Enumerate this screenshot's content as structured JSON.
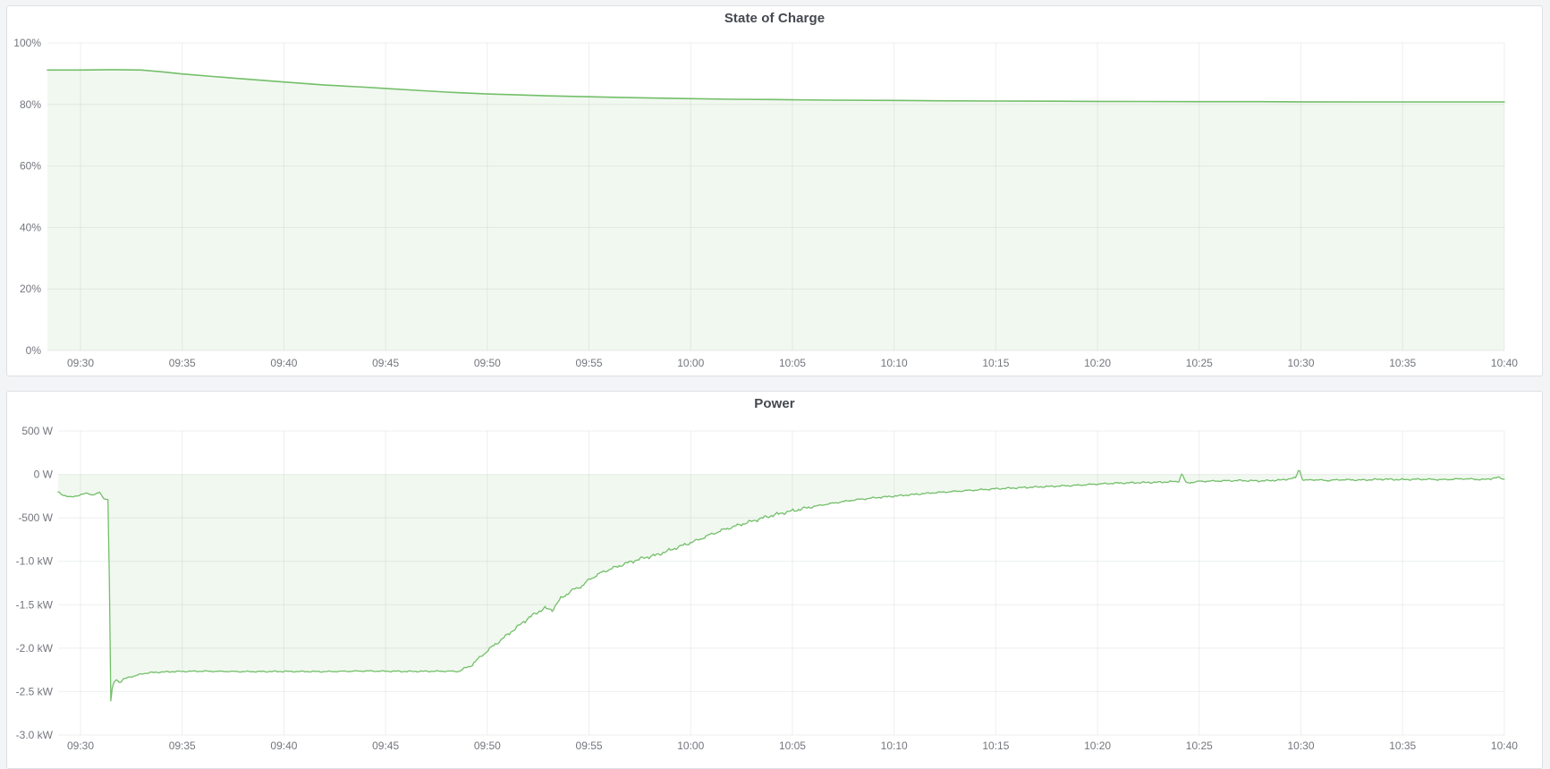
{
  "page": {
    "background_color": "#f3f4f6",
    "panel_background": "#ffffff",
    "panel_border_color": "#dde0e5",
    "title_color": "#44484f",
    "axis_label_color": "#73767d",
    "grid_color": "rgba(20,30,40,0.07)"
  },
  "chart_data": [
    {
      "type": "area",
      "title": "State of Charge",
      "unit": "%",
      "xlabel": "",
      "ylabel": "",
      "ylim": [
        0,
        100
      ],
      "grid": true,
      "legend": "none",
      "line_color": "#73bf69",
      "fill_color": "rgba(115,191,105,0.10)",
      "x_ticks": [
        "09:30",
        "09:35",
        "09:40",
        "09:45",
        "09:50",
        "09:55",
        "10:00",
        "10:05",
        "10:10",
        "10:15",
        "10:20",
        "10:25",
        "10:30",
        "10:35",
        "10:40"
      ],
      "y_ticks": [
        {
          "value": 100,
          "label": "100%"
        },
        {
          "value": 80,
          "label": "80%"
        },
        {
          "value": 60,
          "label": "60%"
        },
        {
          "value": 40,
          "label": "40%"
        },
        {
          "value": 20,
          "label": "20%"
        },
        {
          "value": 0,
          "label": "0%"
        }
      ],
      "series": [
        {
          "name": "State of Charge",
          "points_minutes_from_0930_vs_percent": [
            [
              -1.6,
              91.2
            ],
            [
              0,
              91.2
            ],
            [
              1.5,
              91.3
            ],
            [
              3,
              91.2
            ],
            [
              4,
              90.6
            ],
            [
              5,
              89.9
            ],
            [
              6.5,
              89.1
            ],
            [
              8,
              88.3
            ],
            [
              10,
              87.3
            ],
            [
              12,
              86.3
            ],
            [
              14,
              85.6
            ],
            [
              15,
              85.2
            ],
            [
              16.5,
              84.6
            ],
            [
              18,
              84.0
            ],
            [
              20,
              83.4
            ],
            [
              21.5,
              83.1
            ],
            [
              23,
              82.8
            ],
            [
              25,
              82.5
            ],
            [
              26.5,
              82.3
            ],
            [
              28,
              82.1
            ],
            [
              30,
              81.9
            ],
            [
              32,
              81.7
            ],
            [
              34,
              81.6
            ],
            [
              35,
              81.5
            ],
            [
              37,
              81.4
            ],
            [
              40,
              81.3
            ],
            [
              42,
              81.2
            ],
            [
              45,
              81.1
            ],
            [
              48,
              81.05
            ],
            [
              50,
              81.0
            ],
            [
              52,
              80.95
            ],
            [
              55,
              80.9
            ],
            [
              58,
              80.9
            ],
            [
              60,
              80.85
            ],
            [
              63,
              80.8
            ],
            [
              66,
              80.8
            ],
            [
              70,
              80.8
            ]
          ],
          "noise_amplitude": 0
        }
      ]
    },
    {
      "type": "area",
      "title": "Power",
      "unit": "W",
      "xlabel": "",
      "ylabel": "",
      "ylim": [
        -3000,
        500
      ],
      "grid": true,
      "legend": "none",
      "line_color": "#73bf69",
      "fill_color": "rgba(115,191,105,0.10)",
      "x_ticks": [
        "09:30",
        "09:35",
        "09:40",
        "09:45",
        "09:50",
        "09:55",
        "10:00",
        "10:05",
        "10:10",
        "10:15",
        "10:20",
        "10:25",
        "10:30",
        "10:35",
        "10:40"
      ],
      "y_ticks": [
        {
          "value": 500,
          "label": "500 W"
        },
        {
          "value": 0,
          "label": "0 W"
        },
        {
          "value": -500,
          "label": "-500 W"
        },
        {
          "value": -1000,
          "label": "-1.0 kW"
        },
        {
          "value": -1500,
          "label": "-1.5 kW"
        },
        {
          "value": -2000,
          "label": "-2.0 kW"
        },
        {
          "value": -2500,
          "label": "-2.5 kW"
        },
        {
          "value": -3000,
          "label": "-3.0 kW"
        }
      ],
      "series": [
        {
          "name": "Power",
          "points_minutes_from_0930_vs_watts": [
            [
              -1.1,
              -205
            ],
            [
              -0.8,
              -240
            ],
            [
              -0.5,
              -265
            ],
            [
              -0.2,
              -245
            ],
            [
              0.1,
              -230
            ],
            [
              0.35,
              -215
            ],
            [
              0.6,
              -235
            ],
            [
              0.8,
              -225
            ],
            [
              0.95,
              -205
            ],
            [
              1.1,
              -265
            ],
            [
              1.3,
              -290
            ],
            [
              1.38,
              -290
            ],
            [
              1.48,
              -2630
            ],
            [
              1.58,
              -2420
            ],
            [
              1.75,
              -2360
            ],
            [
              1.95,
              -2400
            ],
            [
              2.1,
              -2360
            ],
            [
              2.4,
              -2330
            ],
            [
              2.7,
              -2320
            ],
            [
              3.0,
              -2295
            ],
            [
              3.5,
              -2280
            ],
            [
              4.5,
              -2270
            ],
            [
              6,
              -2265
            ],
            [
              8,
              -2270
            ],
            [
              10,
              -2268
            ],
            [
              12,
              -2270
            ],
            [
              14,
              -2263
            ],
            [
              16,
              -2268
            ],
            [
              18,
              -2265
            ],
            [
              18.6,
              -2268
            ],
            [
              19.2,
              -2200
            ],
            [
              20,
              -2030
            ],
            [
              20.7,
              -1900
            ],
            [
              21.4,
              -1770
            ],
            [
              22.1,
              -1640
            ],
            [
              22.8,
              -1540
            ],
            [
              23.2,
              -1560
            ],
            [
              23.6,
              -1430
            ],
            [
              24.2,
              -1330
            ],
            [
              24.7,
              -1280
            ],
            [
              25,
              -1210
            ],
            [
              25.7,
              -1120
            ],
            [
              26.4,
              -1060
            ],
            [
              27,
              -1010
            ],
            [
              27.7,
              -960
            ],
            [
              28.3,
              -930
            ],
            [
              29,
              -870
            ],
            [
              29.7,
              -810
            ],
            [
              30.3,
              -760
            ],
            [
              31,
              -690
            ],
            [
              31.7,
              -630
            ],
            [
              32.4,
              -580
            ],
            [
              33,
              -540
            ],
            [
              33.7,
              -490
            ],
            [
              34.4,
              -450
            ],
            [
              35,
              -420
            ],
            [
              35.8,
              -380
            ],
            [
              36.5,
              -350
            ],
            [
              37.3,
              -320
            ],
            [
              38,
              -295
            ],
            [
              39,
              -270
            ],
            [
              40,
              -250
            ],
            [
              41,
              -230
            ],
            [
              42,
              -210
            ],
            [
              43,
              -195
            ],
            [
              44,
              -180
            ],
            [
              45,
              -165
            ],
            [
              46,
              -155
            ],
            [
              47,
              -145
            ],
            [
              48,
              -135
            ],
            [
              49,
              -125
            ],
            [
              50,
              -110
            ],
            [
              51,
              -100
            ],
            [
              52,
              -95
            ],
            [
              53,
              -90
            ],
            [
              54,
              -80
            ],
            [
              54.15,
              15
            ],
            [
              54.35,
              -100
            ],
            [
              55,
              -80
            ],
            [
              56,
              -75
            ],
            [
              57,
              -70
            ],
            [
              58,
              -75
            ],
            [
              59,
              -65
            ],
            [
              59.75,
              -40
            ],
            [
              59.9,
              70
            ],
            [
              60.1,
              -70
            ],
            [
              60.6,
              -60
            ],
            [
              61.3,
              -70
            ],
            [
              62,
              -60
            ],
            [
              63,
              -65
            ],
            [
              64,
              -55
            ],
            [
              65,
              -60
            ],
            [
              66,
              -55
            ],
            [
              67,
              -60
            ],
            [
              68,
              -50
            ],
            [
              69,
              -60
            ],
            [
              69.7,
              -35
            ],
            [
              70,
              -55
            ]
          ],
          "noise_amplitude": "variable"
        }
      ]
    }
  ]
}
